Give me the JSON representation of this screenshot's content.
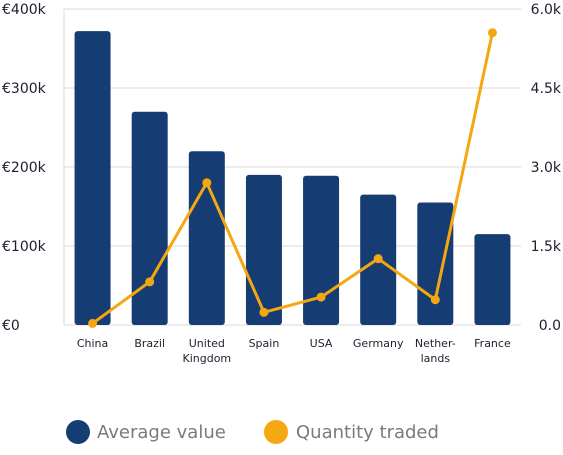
{
  "chart_data": {
    "type": "bar",
    "categories": [
      [
        "China"
      ],
      [
        "Brazil"
      ],
      [
        "United",
        "Kingdom"
      ],
      [
        "Spain"
      ],
      [
        "USA"
      ],
      [
        "Germany"
      ],
      [
        "Nether-",
        "lands"
      ],
      [
        "France"
      ]
    ],
    "series": [
      {
        "name": "Average value",
        "type": "bar",
        "axis": "left",
        "color": "#163d73",
        "values": [
          372000,
          270000,
          220000,
          190000,
          189000,
          165000,
          155000,
          115000
        ]
      },
      {
        "name": "Quantity traded",
        "type": "line",
        "axis": "right",
        "color": "#f5a711",
        "values": [
          30,
          820,
          2700,
          240,
          530,
          1260,
          480,
          5550
        ]
      }
    ],
    "y_left": {
      "range": [
        0,
        400000
      ],
      "ticks": [
        0,
        100000,
        200000,
        300000,
        400000
      ],
      "tick_labels": [
        "€0",
        "€100k",
        "€200k",
        "€300k",
        "€400k"
      ]
    },
    "y_right": {
      "range": [
        0,
        6000
      ],
      "ticks": [
        0,
        1500,
        3000,
        4500,
        6000
      ],
      "tick_labels": [
        "0.0",
        "1.5k",
        "3.0k",
        "4.5k",
        "6.0k"
      ]
    },
    "grid": "horizontal",
    "legend": "bottom"
  }
}
